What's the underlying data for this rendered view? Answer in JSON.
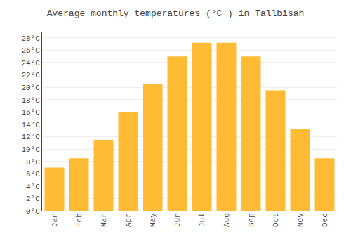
{
  "chart_data": {
    "type": "bar",
    "title": "Average monthly temperatures (°C ) in Tallbīsah",
    "categories": [
      "Jan",
      "Feb",
      "Mar",
      "Apr",
      "May",
      "Jun",
      "Jul",
      "Aug",
      "Sep",
      "Oct",
      "Nov",
      "Dec"
    ],
    "values": [
      7,
      8.5,
      11.5,
      16,
      20.5,
      25,
      27.2,
      27.2,
      25,
      19.5,
      13.2,
      8.5
    ],
    "color": "#FFBB33",
    "ylim": [
      0,
      29
    ],
    "yticks": [
      {
        "value": 0,
        "label": "0°C"
      },
      {
        "value": 2,
        "label": "2°C"
      },
      {
        "value": 4,
        "label": "4°C"
      },
      {
        "value": 6,
        "label": "6°C"
      },
      {
        "value": 8,
        "label": "8°C"
      },
      {
        "value": 10,
        "label": "10°C"
      },
      {
        "value": 12,
        "label": "12°C"
      },
      {
        "value": 14,
        "label": "14°C"
      },
      {
        "value": 16,
        "label": "16°C"
      },
      {
        "value": 18,
        "label": "18°C"
      },
      {
        "value": 20,
        "label": "20°C"
      },
      {
        "value": 22,
        "label": "22°C"
      },
      {
        "value": 24,
        "label": "24°C"
      },
      {
        "value": 26,
        "label": "26°C"
      },
      {
        "value": 28,
        "label": "28°C"
      }
    ],
    "grid": true
  }
}
